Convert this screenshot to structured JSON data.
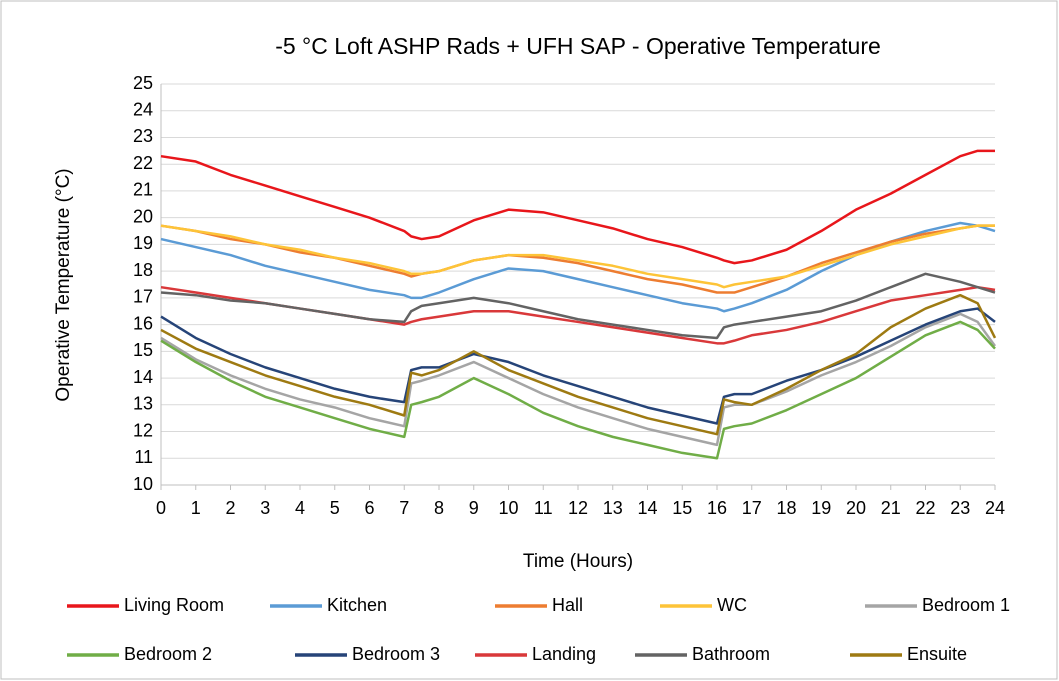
{
  "chart_data": {
    "type": "line",
    "title": "-5 °C Loft ASHP Rads + UFH SAP - Operative Temperature",
    "x_label": "Time (Hours)",
    "y_label": "Operative Temperature (°C)",
    "x": [
      0,
      1,
      2,
      3,
      4,
      5,
      6,
      7,
      7.2,
      7.5,
      8,
      9,
      10,
      11,
      12,
      13,
      14,
      15,
      16,
      16.2,
      16.5,
      17,
      18,
      19,
      20,
      21,
      22,
      23,
      23.5,
      24
    ],
    "xlim": [
      0,
      24
    ],
    "xticks": [
      0,
      1,
      2,
      3,
      4,
      5,
      6,
      7,
      8,
      9,
      10,
      11,
      12,
      13,
      14,
      15,
      16,
      17,
      18,
      19,
      20,
      21,
      22,
      23,
      24
    ],
    "ylim": [
      10,
      25
    ],
    "yticks": [
      10,
      11,
      12,
      13,
      14,
      15,
      16,
      17,
      18,
      19,
      20,
      21,
      22,
      23,
      24,
      25
    ],
    "grid": true,
    "series": [
      {
        "name": "Living Room",
        "color": "#e8161b",
        "values": [
          22.3,
          22.1,
          21.6,
          21.2,
          20.8,
          20.4,
          20.0,
          19.5,
          19.3,
          19.2,
          19.3,
          19.9,
          20.3,
          20.2,
          19.9,
          19.6,
          19.2,
          18.9,
          18.5,
          18.4,
          18.3,
          18.4,
          18.8,
          19.5,
          20.3,
          20.9,
          21.6,
          22.3,
          22.5,
          22.5
        ]
      },
      {
        "name": "Kitchen",
        "color": "#5b9bd5",
        "values": [
          19.2,
          18.9,
          18.6,
          18.2,
          17.9,
          17.6,
          17.3,
          17.1,
          17.0,
          17.0,
          17.2,
          17.7,
          18.1,
          18.0,
          17.7,
          17.4,
          17.1,
          16.8,
          16.6,
          16.5,
          16.6,
          16.8,
          17.3,
          18.0,
          18.6,
          19.1,
          19.5,
          19.8,
          19.7,
          19.5
        ]
      },
      {
        "name": "Hall",
        "color": "#ed7d31",
        "values": [
          19.7,
          19.5,
          19.2,
          19.0,
          18.7,
          18.5,
          18.2,
          17.9,
          17.8,
          17.9,
          18.0,
          18.4,
          18.6,
          18.5,
          18.3,
          18.0,
          17.7,
          17.5,
          17.2,
          17.2,
          17.2,
          17.4,
          17.8,
          18.3,
          18.7,
          19.1,
          19.4,
          19.6,
          19.7,
          19.7
        ]
      },
      {
        "name": "WC",
        "color": "#fdc438",
        "values": [
          19.7,
          19.5,
          19.3,
          19.0,
          18.8,
          18.5,
          18.3,
          18.0,
          17.9,
          17.9,
          18.0,
          18.4,
          18.6,
          18.6,
          18.4,
          18.2,
          17.9,
          17.7,
          17.5,
          17.4,
          17.5,
          17.6,
          17.8,
          18.2,
          18.6,
          19.0,
          19.3,
          19.6,
          19.7,
          19.7
        ]
      },
      {
        "name": "Bedroom 1",
        "color": "#a5a5a5",
        "values": [
          15.5,
          14.7,
          14.1,
          13.6,
          13.2,
          12.9,
          12.5,
          12.2,
          13.8,
          13.9,
          14.1,
          14.6,
          14.0,
          13.4,
          12.9,
          12.5,
          12.1,
          11.8,
          11.5,
          12.9,
          13.0,
          13.0,
          13.5,
          14.1,
          14.6,
          15.2,
          15.9,
          16.4,
          16.1,
          15.2
        ]
      },
      {
        "name": "Bedroom 2",
        "color": "#70ad47",
        "values": [
          15.4,
          14.6,
          13.9,
          13.3,
          12.9,
          12.5,
          12.1,
          11.8,
          13.0,
          13.1,
          13.3,
          14.0,
          13.4,
          12.7,
          12.2,
          11.8,
          11.5,
          11.2,
          11.0,
          12.1,
          12.2,
          12.3,
          12.8,
          13.4,
          14.0,
          14.8,
          15.6,
          16.1,
          15.8,
          15.1
        ]
      },
      {
        "name": "Bedroom 3",
        "color": "#264478",
        "values": [
          16.3,
          15.5,
          14.9,
          14.4,
          14.0,
          13.6,
          13.3,
          13.1,
          14.3,
          14.4,
          14.4,
          14.9,
          14.6,
          14.1,
          13.7,
          13.3,
          12.9,
          12.6,
          12.3,
          13.3,
          13.4,
          13.4,
          13.9,
          14.3,
          14.8,
          15.4,
          16.0,
          16.5,
          16.6,
          16.1
        ]
      },
      {
        "name": "Landing",
        "color": "#d9383a",
        "values": [
          17.4,
          17.2,
          17.0,
          16.8,
          16.6,
          16.4,
          16.2,
          16.0,
          16.1,
          16.2,
          16.3,
          16.5,
          16.5,
          16.3,
          16.1,
          15.9,
          15.7,
          15.5,
          15.3,
          15.3,
          15.4,
          15.6,
          15.8,
          16.1,
          16.5,
          16.9,
          17.1,
          17.3,
          17.4,
          17.3
        ]
      },
      {
        "name": "Bathroom",
        "color": "#636363",
        "values": [
          17.2,
          17.1,
          16.9,
          16.8,
          16.6,
          16.4,
          16.2,
          16.1,
          16.5,
          16.7,
          16.8,
          17.0,
          16.8,
          16.5,
          16.2,
          16.0,
          15.8,
          15.6,
          15.5,
          15.9,
          16.0,
          16.1,
          16.3,
          16.5,
          16.9,
          17.4,
          17.9,
          17.6,
          17.4,
          17.2
        ]
      },
      {
        "name": "Ensuite",
        "color": "#9e7a12",
        "values": [
          15.8,
          15.1,
          14.6,
          14.1,
          13.7,
          13.3,
          13.0,
          12.6,
          14.2,
          14.1,
          14.3,
          15.0,
          14.3,
          13.8,
          13.3,
          12.9,
          12.5,
          12.2,
          11.9,
          13.2,
          13.1,
          13.0,
          13.6,
          14.3,
          14.9,
          15.9,
          16.6,
          17.1,
          16.8,
          15.5
        ]
      }
    ]
  }
}
